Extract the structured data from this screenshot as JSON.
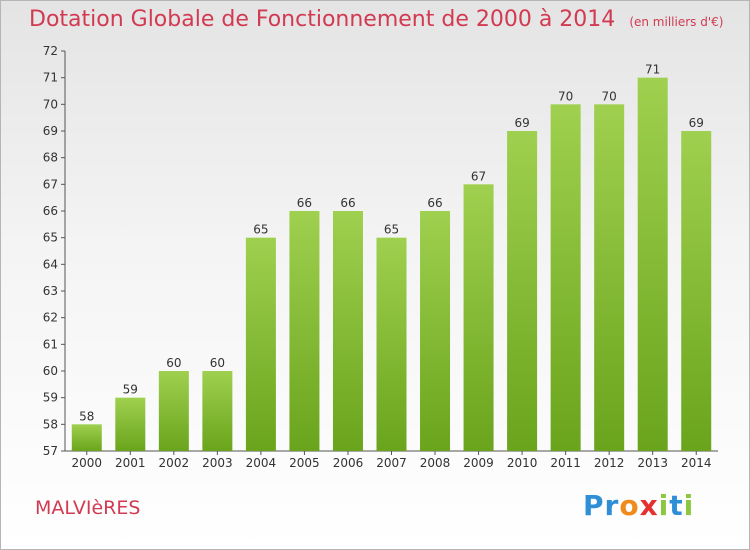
{
  "header": {
    "title": "Dotation Globale de Fonctionnement de 2000 à 2014",
    "unit": "(en milliers d'€)"
  },
  "footer": {
    "place": "MALVIèRES",
    "logo_letters": [
      {
        "char": "P",
        "color": "#2e8fd6"
      },
      {
        "char": "r",
        "color": "#2e8fd6"
      },
      {
        "char": "o",
        "color": "#f08a1c"
      },
      {
        "char": "x",
        "color": "#e2312e"
      },
      {
        "char": "i",
        "color": "#8dc63f"
      },
      {
        "char": "t",
        "color": "#2e8fd6"
      },
      {
        "char": "i",
        "color": "#8dc63f"
      }
    ]
  },
  "chart_data": {
    "type": "bar",
    "title": "Dotation Globale de Fonctionnement de 2000 à 2014",
    "xlabel": "",
    "ylabel": "",
    "categories": [
      "2000",
      "2001",
      "2002",
      "2003",
      "2004",
      "2005",
      "2006",
      "2007",
      "2008",
      "2009",
      "2010",
      "2011",
      "2012",
      "2013",
      "2014"
    ],
    "values": [
      58,
      59,
      60,
      60,
      65,
      66,
      66,
      65,
      66,
      67,
      69,
      70,
      70,
      71,
      69
    ],
    "ylim": [
      57,
      72
    ],
    "yticks": [
      57,
      58,
      59,
      60,
      61,
      62,
      63,
      64,
      65,
      66,
      67,
      68,
      69,
      70,
      71,
      72
    ],
    "grid": false,
    "colors": {
      "bar_light": "#9fd04f",
      "bar_dark": "#6aa41c",
      "axis": "#555555",
      "label": "#333333"
    }
  }
}
